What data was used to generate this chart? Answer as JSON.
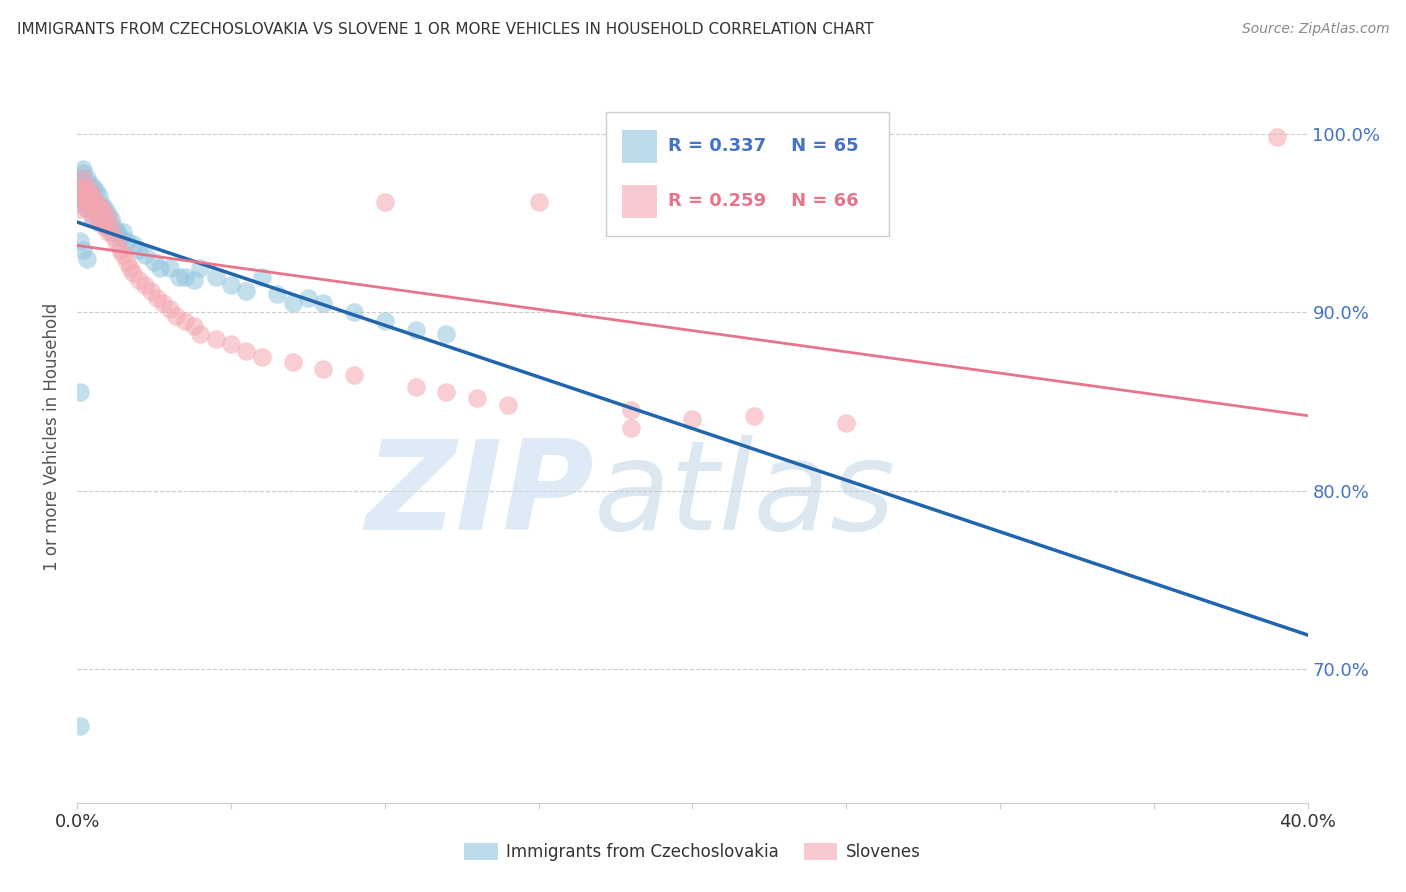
{
  "title": "IMMIGRANTS FROM CZECHOSLOVAKIA VS SLOVENE 1 OR MORE VEHICLES IN HOUSEHOLD CORRELATION CHART",
  "source": "Source: ZipAtlas.com",
  "ylabel": "1 or more Vehicles in Household",
  "legend_label1": "Immigrants from Czechoslovakia",
  "legend_label2": "Slovenes",
  "r1": 0.337,
  "n1": 65,
  "r2": 0.259,
  "n2": 66,
  "color1": "#92c5de",
  "color2": "#f4a6b0",
  "trendline1_color": "#2166ac",
  "trendline2_color": "#e8748a",
  "xlim": [
    0.0,
    0.4
  ],
  "ylim": [
    0.625,
    1.035
  ],
  "yticks_right": [
    0.7,
    0.8,
    0.9,
    1.0
  ],
  "ytick_labels_right": [
    "70.0%",
    "80.0%",
    "90.0%",
    "100.0%"
  ],
  "watermark_zip": "ZIP",
  "watermark_atlas": "atlas",
  "blue_x": [
    0.001,
    0.001,
    0.001,
    0.002,
    0.002,
    0.002,
    0.002,
    0.002,
    0.003,
    0.003,
    0.003,
    0.003,
    0.004,
    0.004,
    0.004,
    0.005,
    0.005,
    0.005,
    0.005,
    0.006,
    0.006,
    0.006,
    0.007,
    0.007,
    0.007,
    0.008,
    0.008,
    0.009,
    0.009,
    0.01,
    0.01,
    0.011,
    0.011,
    0.012,
    0.013,
    0.014,
    0.015,
    0.016,
    0.018,
    0.02,
    0.022,
    0.025,
    0.027,
    0.03,
    0.033,
    0.035,
    0.038,
    0.04,
    0.045,
    0.05,
    0.055,
    0.06,
    0.065,
    0.07,
    0.075,
    0.08,
    0.09,
    0.1,
    0.11,
    0.12,
    0.001,
    0.002,
    0.003,
    0.001,
    0.001
  ],
  "blue_y": [
    0.975,
    0.97,
    0.965,
    0.98,
    0.978,
    0.972,
    0.968,
    0.96,
    0.975,
    0.97,
    0.965,
    0.958,
    0.972,
    0.965,
    0.958,
    0.97,
    0.965,
    0.96,
    0.952,
    0.968,
    0.962,
    0.955,
    0.965,
    0.958,
    0.95,
    0.96,
    0.952,
    0.958,
    0.95,
    0.955,
    0.948,
    0.952,
    0.945,
    0.948,
    0.945,
    0.942,
    0.945,
    0.94,
    0.938,
    0.935,
    0.932,
    0.928,
    0.925,
    0.925,
    0.92,
    0.92,
    0.918,
    0.925,
    0.92,
    0.915,
    0.912,
    0.92,
    0.91,
    0.905,
    0.908,
    0.905,
    0.9,
    0.895,
    0.89,
    0.888,
    0.94,
    0.935,
    0.93,
    0.855,
    0.668
  ],
  "pink_x": [
    0.001,
    0.001,
    0.001,
    0.002,
    0.002,
    0.002,
    0.003,
    0.003,
    0.003,
    0.004,
    0.004,
    0.005,
    0.005,
    0.005,
    0.006,
    0.006,
    0.007,
    0.007,
    0.008,
    0.008,
    0.009,
    0.009,
    0.01,
    0.01,
    0.011,
    0.012,
    0.013,
    0.014,
    0.015,
    0.016,
    0.017,
    0.018,
    0.02,
    0.022,
    0.024,
    0.026,
    0.028,
    0.03,
    0.032,
    0.035,
    0.038,
    0.04,
    0.045,
    0.05,
    0.055,
    0.06,
    0.07,
    0.08,
    0.09,
    0.1,
    0.11,
    0.12,
    0.13,
    0.14,
    0.15,
    0.18,
    0.2,
    0.22,
    0.25,
    0.2,
    0.002,
    0.003,
    0.004,
    0.39,
    0.2,
    0.18
  ],
  "pink_y": [
    0.97,
    0.965,
    0.958,
    0.975,
    0.968,
    0.962,
    0.97,
    0.965,
    0.958,
    0.968,
    0.96,
    0.965,
    0.958,
    0.952,
    0.962,
    0.955,
    0.96,
    0.953,
    0.958,
    0.95,
    0.955,
    0.948,
    0.952,
    0.945,
    0.948,
    0.942,
    0.938,
    0.935,
    0.932,
    0.928,
    0.925,
    0.922,
    0.918,
    0.915,
    0.912,
    0.908,
    0.905,
    0.902,
    0.898,
    0.895,
    0.892,
    0.888,
    0.885,
    0.882,
    0.878,
    0.875,
    0.872,
    0.868,
    0.865,
    0.962,
    0.858,
    0.855,
    0.852,
    0.848,
    0.962,
    0.845,
    0.96,
    0.842,
    0.838,
    0.968,
    0.968,
    0.965,
    0.962,
    0.998,
    0.84,
    0.835
  ]
}
